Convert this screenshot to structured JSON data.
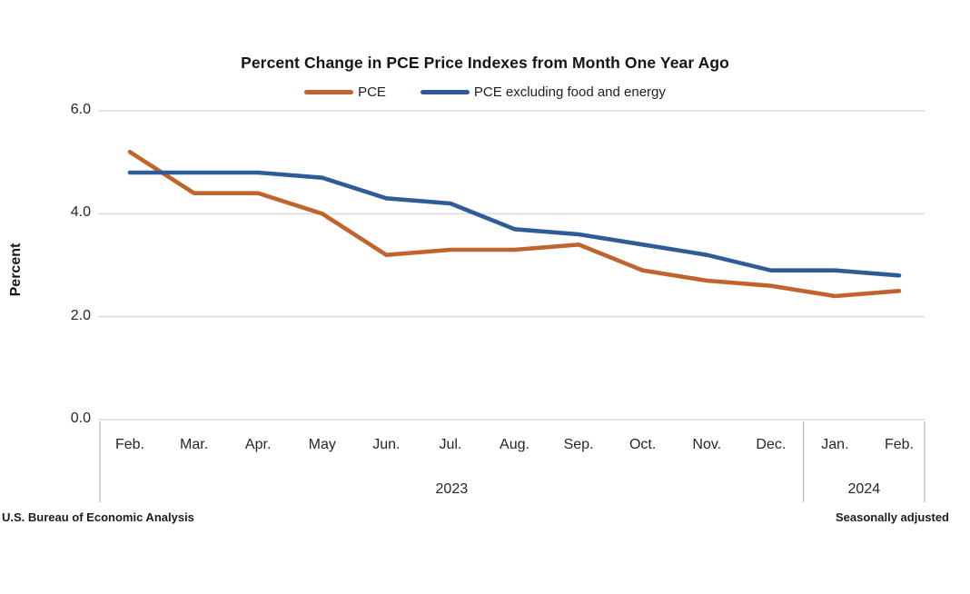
{
  "title": "Percent Change in PCE Price Indexes from Month One Year Ago",
  "legend": {
    "items": [
      {
        "label": "PCE",
        "color": "#C0642E"
      },
      {
        "label": "PCE excluding food and energy",
        "color": "#2E5C99"
      }
    ]
  },
  "y_axis": {
    "title": "Percent",
    "ticks": [
      {
        "value": 6,
        "label": "6.0"
      },
      {
        "value": 4,
        "label": "4.0"
      },
      {
        "value": 2,
        "label": "2.0"
      },
      {
        "value": 0,
        "label": "0.0"
      }
    ]
  },
  "x_axis": {
    "months": [
      "Feb.",
      "Mar.",
      "Apr.",
      "May",
      "Jun.",
      "Jul.",
      "Aug.",
      "Sep.",
      "Oct.",
      "Nov.",
      "Dec.",
      "Jan.",
      "Feb."
    ],
    "year_groups": [
      {
        "label": "2023",
        "start_index": 0,
        "end_index": 10
      },
      {
        "label": "2024",
        "start_index": 11,
        "end_index": 12
      }
    ]
  },
  "footnotes": {
    "left": "U.S. Bureau of Economic Analysis",
    "right": "Seasonally adjusted"
  },
  "colors": {
    "pce_line": "#C0642E",
    "core_pce_line": "#2E5C99",
    "gridline": "#DBDBDB",
    "axis_bracket": "#C4C4C4"
  },
  "chart_data": {
    "type": "line",
    "title": "Percent Change in PCE Price Indexes from Month One Year Ago",
    "categories": [
      "Feb. 2023",
      "Mar. 2023",
      "Apr. 2023",
      "May 2023",
      "Jun. 2023",
      "Jul. 2023",
      "Aug. 2023",
      "Sep. 2023",
      "Oct. 2023",
      "Nov. 2023",
      "Dec. 2023",
      "Jan. 2024",
      "Feb. 2024"
    ],
    "series": [
      {
        "name": "PCE",
        "color": "#C0642E",
        "values": [
          5.2,
          4.4,
          4.4,
          4.0,
          3.2,
          3.3,
          3.3,
          3.4,
          2.9,
          2.7,
          2.6,
          2.4,
          2.5
        ]
      },
      {
        "name": "PCE excluding food and energy",
        "color": "#2E5C99",
        "values": [
          4.8,
          4.8,
          4.8,
          4.7,
          4.3,
          4.2,
          3.7,
          3.6,
          3.4,
          3.2,
          2.9,
          2.9,
          2.8
        ]
      }
    ],
    "xlabel": "",
    "ylabel": "Percent",
    "ylim": [
      0,
      6
    ],
    "ytick_interval": 2,
    "grid": true,
    "legend_position": "top",
    "notes": [
      "U.S. Bureau of Economic Analysis",
      "Seasonally adjusted"
    ]
  }
}
